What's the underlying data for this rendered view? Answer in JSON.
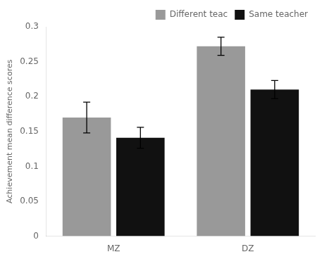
{
  "chart_data": {
    "type": "bar",
    "categories": [
      "MZ",
      "DZ"
    ],
    "series": [
      {
        "name": "Different teac",
        "color": "#999999",
        "values": [
          0.17,
          0.272
        ],
        "errors": [
          0.022,
          0.013
        ]
      },
      {
        "name": "Same teacher",
        "color": "#111111",
        "values": [
          0.141,
          0.21
        ],
        "errors": [
          0.015,
          0.013
        ]
      }
    ],
    "ylabel": "Achievement mean difference scores",
    "ylim": [
      0,
      0.3
    ],
    "yticks": [
      0,
      0.05,
      0.1,
      0.15,
      0.2,
      0.25,
      0.3
    ],
    "grid": false,
    "legend": "upper right"
  }
}
